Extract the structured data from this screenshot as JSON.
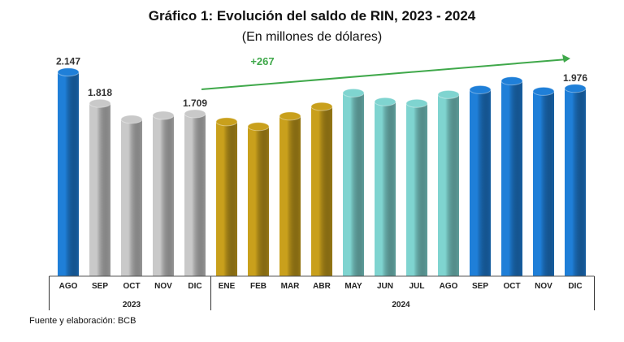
{
  "chart_data": {
    "type": "bar",
    "title": "Gráfico 1: Evolución del saldo de RIN, 2023 - 2024",
    "subtitle": "(En millones de dólares)",
    "xlabel": "",
    "ylabel": "",
    "ylim": [
      0,
      2300
    ],
    "grid": false,
    "categories": [
      "AGO",
      "SEP",
      "OCT",
      "NOV",
      "DIC",
      "ENE",
      "FEB",
      "MAR",
      "ABR",
      "MAY",
      "JUN",
      "JUL",
      "AGO",
      "SEP",
      "OCT",
      "NOV",
      "DIC"
    ],
    "years": [
      {
        "label": "2023",
        "from": 0,
        "to": 4
      },
      {
        "label": "2024",
        "from": 5,
        "to": 16
      }
    ],
    "values": [
      2147,
      1818,
      1650,
      1692,
      1709,
      1625,
      1574,
      1684,
      1785,
      1928,
      1835,
      1818,
      1911,
      1962,
      2054,
      1945,
      1976
    ],
    "colors": [
      "#1f7fd8",
      "#c9c9c9",
      "#c9c9c9",
      "#c9c9c9",
      "#c9c9c9",
      "#c9a01c",
      "#c9a01c",
      "#c9a01c",
      "#c9a01c",
      "#7fd4d0",
      "#7fd4d0",
      "#7fd4d0",
      "#7fd4d0",
      "#1f7fd8",
      "#1f7fd8",
      "#1f7fd8",
      "#1f7fd8"
    ],
    "data_labels": [
      {
        "index": 0,
        "text": "2.147"
      },
      {
        "index": 1,
        "text": "1.818"
      },
      {
        "index": 4,
        "text": "1.709"
      },
      {
        "index": 16,
        "text": "1.976"
      }
    ],
    "annotation": {
      "text": "+267",
      "from": 4,
      "to": 16,
      "color": "#3fa84a"
    }
  },
  "source": "Fuente y elaboración: BCB"
}
